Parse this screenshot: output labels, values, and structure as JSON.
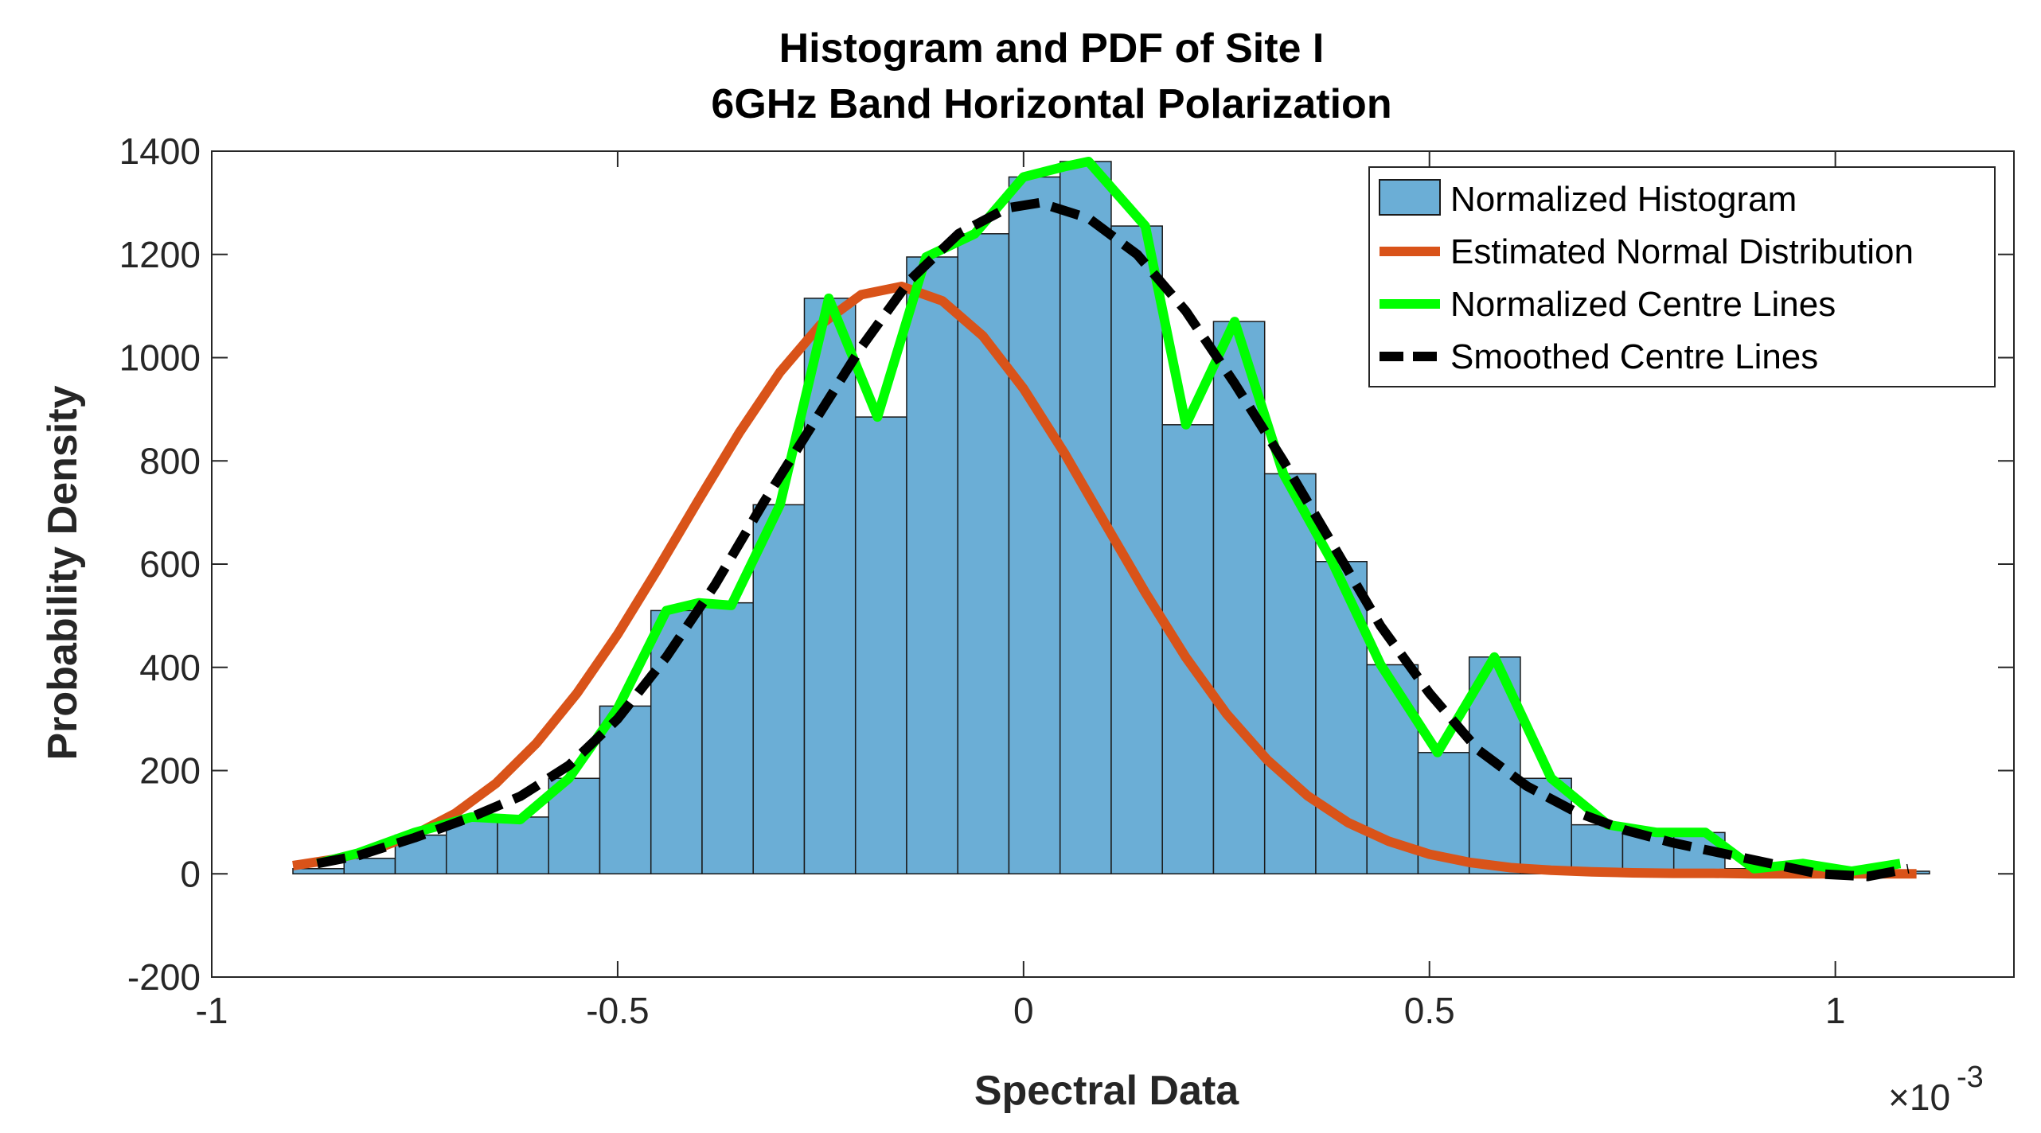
{
  "chart_data": {
    "type": "bar",
    "title": [
      "Histogram and PDF of Site I",
      "6GHz Band Horizontal Polarization"
    ],
    "xlabel": "Spectral Data",
    "ylabel": "Probability Density",
    "x_exponent": "×10",
    "x_exponent_power": "-3",
    "xlim": [
      -1,
      1.22
    ],
    "ylim": [
      -200,
      1400
    ],
    "xticks": [
      -1,
      -0.5,
      0,
      0.5,
      1
    ],
    "xtick_labels": [
      "-1",
      "-0.5",
      "0",
      "0.5",
      "1"
    ],
    "yticks": [
      -200,
      0,
      200,
      400,
      600,
      800,
      1000,
      1200,
      1400
    ],
    "ytick_labels": [
      "-200",
      "0",
      "200",
      "400",
      "600",
      "800",
      "1000",
      "1200",
      "1400"
    ],
    "histogram": {
      "name": "Normalized Histogram",
      "color": "#6baed6",
      "edge_color": "#1a1a1a",
      "bin_edges": [
        -0.9,
        -0.837,
        -0.774,
        -0.711,
        -0.648,
        -0.585,
        -0.522,
        -0.459,
        -0.396,
        -0.333,
        -0.27,
        -0.207,
        -0.144,
        -0.081,
        -0.018,
        0.045,
        0.108,
        0.171,
        0.234,
        0.297,
        0.36,
        0.423,
        0.486,
        0.549,
        0.612,
        0.675,
        0.738,
        0.801,
        0.864,
        0.927,
        0.99,
        1.053,
        1.116
      ],
      "values": [
        10,
        30,
        75,
        110,
        110,
        185,
        325,
        510,
        525,
        715,
        1115,
        885,
        1195,
        1240,
        1350,
        1380,
        1255,
        870,
        1070,
        775,
        605,
        405,
        235,
        420,
        185,
        95,
        80,
        80,
        10,
        20,
        5,
        5
      ]
    },
    "series": [
      {
        "name": "Estimated Normal Distribution",
        "color": "#d95319",
        "style": "solid",
        "x": [
          -0.9,
          -0.85,
          -0.8,
          -0.75,
          -0.7,
          -0.65,
          -0.6,
          -0.55,
          -0.5,
          -0.45,
          -0.4,
          -0.35,
          -0.3,
          -0.25,
          -0.2,
          -0.15,
          -0.1,
          -0.05,
          0.0,
          0.05,
          0.1,
          0.15,
          0.2,
          0.25,
          0.3,
          0.35,
          0.4,
          0.45,
          0.5,
          0.55,
          0.6,
          0.65,
          0.7,
          0.75,
          0.8,
          0.85,
          0.9,
          0.95,
          1.0,
          1.05,
          1.1
        ],
        "values": [
          16,
          28,
          47,
          76,
          117,
          175,
          253,
          350,
          464,
          592,
          725,
          855,
          972,
          1064,
          1122,
          1138,
          1110,
          1042,
          940,
          816,
          680,
          545,
          419,
          310,
          221,
          151,
          99,
          63,
          38,
          22,
          12,
          7,
          4,
          2,
          1,
          1,
          0,
          0,
          0,
          0,
          0
        ]
      },
      {
        "name": "Normalized Centre Lines",
        "color": "#00ff00",
        "style": "solid",
        "x": [
          -0.87,
          -0.82,
          -0.75,
          -0.68,
          -0.62,
          -0.56,
          -0.5,
          -0.44,
          -0.4,
          -0.36,
          -0.3,
          -0.24,
          -0.18,
          -0.12,
          -0.06,
          0.0,
          0.05,
          0.08,
          0.15,
          0.2,
          0.26,
          0.32,
          0.38,
          0.44,
          0.51,
          0.58,
          0.65,
          0.72,
          0.78,
          0.84,
          0.9,
          0.96,
          1.02,
          1.08
        ],
        "values": [
          20,
          40,
          80,
          110,
          105,
          185,
          320,
          510,
          525,
          520,
          715,
          1115,
          885,
          1195,
          1240,
          1350,
          1370,
          1380,
          1255,
          870,
          1070,
          775,
          605,
          405,
          235,
          420,
          185,
          95,
          80,
          80,
          10,
          20,
          5,
          20
        ]
      },
      {
        "name": "Smoothed Centre Lines",
        "color": "#000000",
        "style": "dashed",
        "x": [
          -0.87,
          -0.82,
          -0.75,
          -0.68,
          -0.62,
          -0.56,
          -0.5,
          -0.44,
          -0.38,
          -0.32,
          -0.26,
          -0.2,
          -0.14,
          -0.08,
          -0.02,
          0.02,
          0.08,
          0.14,
          0.2,
          0.26,
          0.32,
          0.38,
          0.44,
          0.5,
          0.56,
          0.62,
          0.68,
          0.74,
          0.8,
          0.86,
          0.92,
          0.98,
          1.04,
          1.09
        ],
        "values": [
          20,
          35,
          70,
          110,
          150,
          210,
          300,
          420,
          560,
          720,
          870,
          1020,
          1150,
          1240,
          1290,
          1300,
          1270,
          1200,
          1090,
          950,
          800,
          640,
          480,
          350,
          240,
          170,
          120,
          85,
          60,
          40,
          20,
          0,
          -5,
          10
        ]
      }
    ],
    "legend_position": "top-right"
  }
}
